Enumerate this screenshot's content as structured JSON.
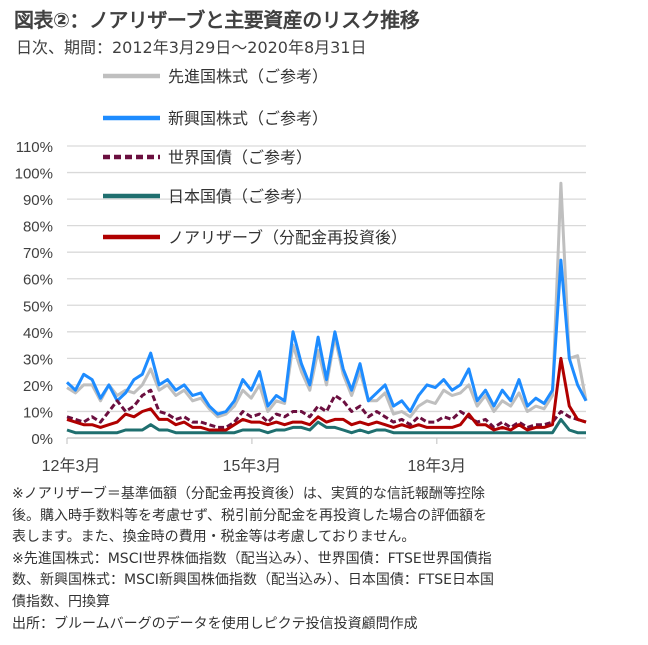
{
  "title": "図表②：ノアリザーブと主要資産のリスク推移",
  "subtitle": "日次、期間：2012年3月29日～2020年8月31日",
  "chart_data": {
    "type": "line",
    "title": "図表②：ノアリザーブと主要資産のリスク推移",
    "xlabel": "",
    "ylabel": "",
    "x_start": 2012.25,
    "x_end": 2020.67,
    "ylim": [
      0,
      110
    ],
    "yticks": [
      0,
      10,
      20,
      30,
      40,
      50,
      60,
      70,
      80,
      90,
      100,
      110
    ],
    "ytick_labels": [
      "0%",
      "10%",
      "20%",
      "30%",
      "40%",
      "50%",
      "60%",
      "70%",
      "80%",
      "90%",
      "100%",
      "110%"
    ],
    "xticks": [
      2012.25,
      2015.25,
      2018.25
    ],
    "xtick_labels": [
      "12年3月",
      "15年3月",
      "18年3月"
    ],
    "grid": true,
    "legend_position": "top-left",
    "series": [
      {
        "name": "先進国株式（ご参考）",
        "color": "#bfbfbf",
        "dash": false,
        "values": [
          19,
          17,
          20,
          20,
          14,
          20,
          16,
          18,
          17,
          20,
          26,
          18,
          20,
          16,
          18,
          14,
          15,
          11,
          8,
          9,
          12,
          18,
          15,
          20,
          10,
          14,
          13,
          35,
          25,
          18,
          33,
          20,
          38,
          24,
          16,
          25,
          14,
          14,
          17,
          9,
          10,
          8,
          12,
          14,
          13,
          18,
          16,
          17,
          20,
          12,
          16,
          10,
          14,
          12,
          17,
          10,
          12,
          11,
          16,
          96,
          30,
          31,
          14
        ]
      },
      {
        "name": "新興国株式（ご参考）",
        "color": "#1e8cff",
        "dash": false,
        "values": [
          21,
          18,
          24,
          22,
          15,
          20,
          14,
          17,
          22,
          24,
          32,
          20,
          22,
          18,
          20,
          16,
          17,
          12,
          9,
          10,
          14,
          22,
          18,
          25,
          12,
          16,
          14,
          40,
          28,
          20,
          38,
          22,
          40,
          26,
          18,
          28,
          14,
          17,
          20,
          12,
          14,
          10,
          16,
          20,
          19,
          22,
          18,
          20,
          26,
          14,
          18,
          12,
          18,
          14,
          22,
          12,
          15,
          13,
          18,
          67,
          30,
          20,
          14
        ]
      },
      {
        "name": "世界国債（ご参考）",
        "color": "#6b0f3f",
        "dash": true,
        "values": [
          8,
          7,
          6,
          8,
          6,
          10,
          14,
          10,
          12,
          16,
          18,
          10,
          9,
          7,
          8,
          6,
          6,
          5,
          4,
          4,
          6,
          10,
          8,
          9,
          6,
          9,
          8,
          10,
          10,
          8,
          12,
          10,
          16,
          14,
          10,
          12,
          8,
          10,
          8,
          6,
          7,
          5,
          8,
          6,
          6,
          8,
          7,
          10,
          8,
          6,
          7,
          4,
          6,
          4,
          6,
          4,
          5,
          5,
          6,
          10,
          8,
          7,
          6
        ]
      },
      {
        "name": "日本国債（ご参考）",
        "color": "#1f6f6f",
        "dash": false,
        "values": [
          3,
          2,
          2,
          2,
          2,
          2,
          2,
          3,
          3,
          3,
          5,
          3,
          3,
          2,
          2,
          2,
          2,
          2,
          2,
          2,
          2,
          3,
          3,
          3,
          2,
          3,
          3,
          4,
          4,
          3,
          6,
          4,
          4,
          3,
          2,
          3,
          2,
          3,
          3,
          2,
          2,
          2,
          2,
          2,
          2,
          2,
          2,
          2,
          2,
          2,
          2,
          2,
          2,
          2,
          2,
          2,
          2,
          2,
          2,
          7,
          3,
          2,
          2
        ]
      },
      {
        "name": "ノアリザーブ（分配金再投資後）",
        "color": "#b00000",
        "dash": false,
        "values": [
          7,
          6,
          5,
          5,
          4,
          5,
          6,
          9,
          8,
          10,
          11,
          7,
          7,
          5,
          6,
          4,
          4,
          3,
          3,
          3,
          5,
          7,
          6,
          6,
          5,
          6,
          5,
          6,
          6,
          5,
          8,
          6,
          7,
          7,
          5,
          6,
          5,
          6,
          5,
          4,
          5,
          4,
          5,
          4,
          4,
          4,
          4,
          5,
          9,
          5,
          5,
          3,
          4,
          3,
          5,
          3,
          4,
          4,
          5,
          30,
          12,
          7,
          6
        ]
      }
    ]
  },
  "notes": [
    "※ノアリザーブ＝基準価額（分配金再投資後）は、実質的な信託報酬等控除",
    "後。購入時手数料等を考慮せず、税引前分配金を再投資した場合の評価額を",
    "表します。また、換金時の費用・税金等は考慮しておりません。",
    "※先進国株式：MSCI世界株価指数（配当込み）、世界国債：FTSE世界国債指",
    "数、新興国株式：MSCI新興国株価指数（配当込み）、日本国債：FTSE日本国",
    "債指数、円換算",
    "出所：ブルームバーグのデータを使用しピクテ投信投資顧問作成"
  ]
}
